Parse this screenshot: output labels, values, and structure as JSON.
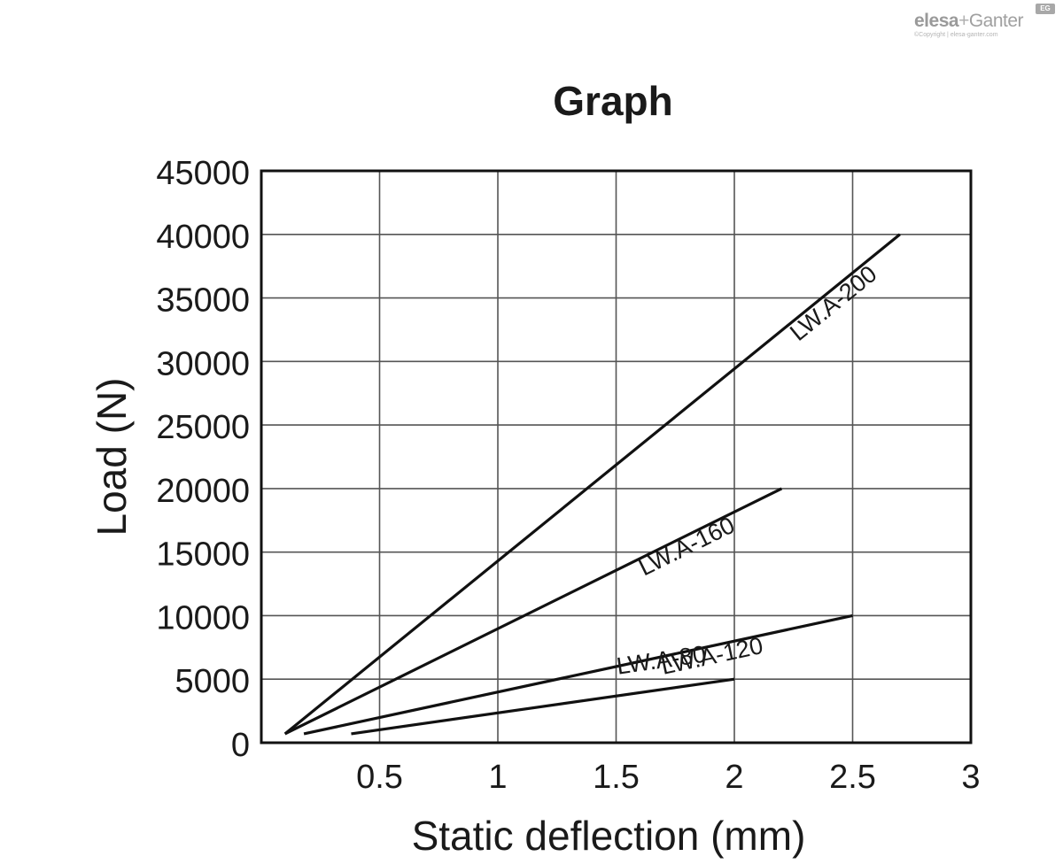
{
  "logo": {
    "brand_1": "elesa",
    "brand_plus": "+",
    "brand_2": "Ganter",
    "mark": "EG",
    "copyright": "©Copyright | elesa-ganter.com"
  },
  "chart_data": {
    "type": "line",
    "title": "Graph",
    "xlabel": "Static deflection (mm)",
    "ylabel": "Load (N)",
    "xlim": [
      0,
      3
    ],
    "ylim": [
      0,
      45000
    ],
    "xticks": [
      0.5,
      1,
      1.5,
      2,
      2.5,
      3
    ],
    "xtick_labels": [
      "0.5",
      "1",
      "1.5",
      "2",
      "2.5",
      "3"
    ],
    "yticks": [
      0,
      5000,
      10000,
      15000,
      20000,
      25000,
      30000,
      35000,
      40000,
      45000
    ],
    "ytick_labels": [
      "0",
      "5000",
      "10000",
      "15000",
      "20000",
      "25000",
      "30000",
      "35000",
      "40000",
      "45000"
    ],
    "grid": true,
    "legend": "none",
    "series": [
      {
        "name": "LW.A-200",
        "x": [
          0.1,
          2.7
        ],
        "y": [
          700,
          40000
        ]
      },
      {
        "name": "LW.A-160",
        "x": [
          0.1,
          2.2
        ],
        "y": [
          700,
          20000
        ]
      },
      {
        "name": "LW.A-120",
        "x": [
          0.18,
          2.5
        ],
        "y": [
          700,
          10000
        ]
      },
      {
        "name": "LW.A-80",
        "x": [
          0.38,
          2.0
        ],
        "y": [
          700,
          5000
        ]
      }
    ],
    "colors": {
      "line": "#111111",
      "grid": "#555555",
      "frame": "#111111"
    }
  }
}
